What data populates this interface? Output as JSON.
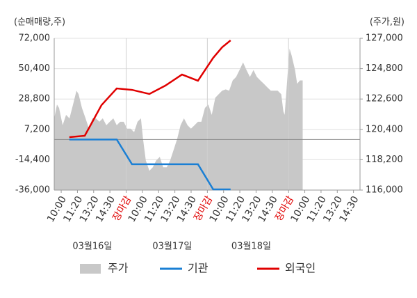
{
  "chart_data": {
    "type": "line",
    "y_title": "(순매매량,주)",
    "y2_title": "(주가,원)",
    "xlim": [
      -0.43,
      18.4
    ],
    "ylim": [
      -36000,
      72000
    ],
    "yticks": [
      {
        "value": -36000,
        "label": "-36,000"
      },
      {
        "value": -14400,
        "label": "-14,400"
      },
      {
        "value": 7200,
        "label": "7,200"
      },
      {
        "value": 28800,
        "label": "28,800"
      },
      {
        "value": 50400,
        "label": "50,400"
      },
      {
        "value": 72000,
        "label": "72,000"
      }
    ],
    "y2lim": [
      116000,
      127000
    ],
    "y2ticks": [
      {
        "value": 116000,
        "label": "116,000"
      },
      {
        "value": 118200,
        "label": "118,200"
      },
      {
        "value": 120400,
        "label": "120,400"
      },
      {
        "value": 122600,
        "label": "122,600"
      },
      {
        "value": 124800,
        "label": "124,800"
      },
      {
        "value": 127000,
        "label": "127,000"
      }
    ],
    "xticks": [
      {
        "value": 0,
        "label": "10:00"
      },
      {
        "value": 1,
        "label": "11:20"
      },
      {
        "value": 2,
        "label": "13:20"
      },
      {
        "value": 3,
        "label": "14:30"
      },
      {
        "value": 4,
        "label": "장마감",
        "color": "#e00000"
      },
      {
        "value": 5,
        "label": "10:00"
      },
      {
        "value": 6,
        "label": "11:20"
      },
      {
        "value": 7,
        "label": "13:20"
      },
      {
        "value": 8,
        "label": "14:30"
      },
      {
        "value": 9,
        "label": "장마감",
        "color": "#e00000"
      },
      {
        "value": 10,
        "label": "10:00"
      },
      {
        "value": 11,
        "label": "11:20"
      },
      {
        "value": 12,
        "label": "13:20"
      },
      {
        "value": 13,
        "label": "14:30"
      },
      {
        "value": 14,
        "label": "장마감",
        "color": "#e00000"
      },
      {
        "value": 15,
        "label": "10:00"
      },
      {
        "value": 16,
        "label": "11:20"
      },
      {
        "value": 17,
        "label": "13:20"
      },
      {
        "value": 18,
        "label": "14:30"
      }
    ],
    "date_labels": [
      {
        "value": 1.92,
        "label": "03월16일"
      },
      {
        "value": 6.84,
        "label": "03월17일"
      },
      {
        "value": 11.7,
        "label": "03월18일"
      }
    ],
    "series": [
      {
        "name": "주가",
        "color": "#c8c8c8",
        "kind": "area",
        "axis": "y2",
        "x": [
          -0.43,
          -0.26,
          -0.13,
          0.09,
          0.3,
          0.51,
          0.73,
          0.94,
          1.07,
          1.28,
          1.5,
          1.71,
          1.92,
          2.14,
          2.35,
          2.56,
          2.78,
          2.99,
          3.21,
          3.42,
          3.63,
          3.85,
          4.06,
          4.27,
          4.49,
          4.7,
          4.91,
          5.04,
          5.21,
          5.43,
          5.64,
          5.85,
          6.07,
          6.28,
          6.5,
          6.71,
          6.92,
          7.14,
          7.35,
          7.56,
          7.78,
          7.99,
          8.21,
          8.42,
          8.63,
          8.85,
          9.06,
          9.27,
          9.49,
          9.7,
          9.91,
          10.13,
          10.34,
          10.56,
          10.77,
          10.98,
          11.2,
          11.41,
          11.62,
          11.84,
          12.05,
          12.26,
          12.48,
          12.69,
          12.91,
          13.12,
          13.33,
          13.55,
          13.68,
          13.76,
          13.93,
          14.06,
          14.19,
          14.4,
          14.53,
          14.7,
          14.87
        ],
        "values": [
          121200,
          122200,
          121950,
          120700,
          121450,
          121200,
          122200,
          123200,
          122950,
          121950,
          121200,
          120450,
          121200,
          121200,
          120950,
          121200,
          120700,
          120950,
          121200,
          120700,
          120950,
          120950,
          120450,
          120450,
          120200,
          120950,
          121200,
          119700,
          118150,
          117400,
          117650,
          118150,
          118400,
          117650,
          117650,
          118150,
          118900,
          119700,
          120700,
          121200,
          120700,
          120450,
          120700,
          120950,
          120950,
          121950,
          122200,
          121450,
          122700,
          122950,
          123200,
          123300,
          123200,
          123950,
          124200,
          124700,
          125250,
          124700,
          124200,
          124700,
          124200,
          123950,
          123700,
          123450,
          123200,
          123200,
          123200,
          122950,
          121700,
          121450,
          124200,
          126250,
          125750,
          124700,
          123700,
          123950,
          123950
        ]
      },
      {
        "name": "기관",
        "color": "#1a7fd4",
        "kind": "line",
        "x": [
          0.5,
          3.42,
          4.36,
          8.42,
          9.36,
          10.43
        ],
        "values": [
          0,
          0,
          -17600,
          -17600,
          -35500,
          -35500
        ]
      },
      {
        "name": "외국인",
        "color": "#e00000",
        "kind": "line",
        "x": [
          0.5,
          1.45,
          2.48,
          3.42,
          4.36,
          5.43,
          6.41,
          7.44,
          8.42,
          9.36,
          9.91,
          10.43
        ],
        "values": [
          1650,
          2650,
          24400,
          36300,
          35300,
          32400,
          38300,
          46200,
          41800,
          58100,
          65600,
          70500
        ]
      }
    ]
  }
}
